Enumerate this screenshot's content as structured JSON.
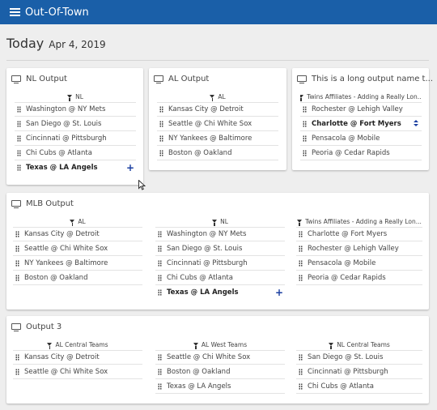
{
  "app": {
    "title": "Out-Of-Town"
  },
  "header": {
    "today": "Today",
    "date": "Apr 4, 2019"
  },
  "cards": [
    {
      "name": "NL Output",
      "columns": [
        {
          "filter": "NL",
          "rows": [
            "Washington @ NY Mets",
            "San Diego @ St. Louis",
            "Cincinnati @ Pittsburgh",
            "Chi Cubs @ Atlanta",
            "Texas @ LA Angels"
          ]
        }
      ]
    },
    {
      "name": "AL Output",
      "columns": [
        {
          "filter": "AL",
          "rows": [
            "Kansas City @ Detroit",
            "Seattle @ Chi White Sox",
            "NY Yankees @ Baltimore",
            "Boston @ Oakland"
          ]
        }
      ]
    },
    {
      "name": "This is a long output name t...",
      "columns": [
        {
          "filter": "Twins Affiliates - Adding a Really Lon...",
          "rows": [
            "Rochester @ Lehigh Valley",
            "Charlotte @ Fort Myers",
            "Pensacola @ Mobile",
            "Peoria @ Cedar Rapids"
          ]
        }
      ]
    },
    {
      "name": "MLB Output",
      "columns": [
        {
          "filter": "AL",
          "rows": [
            "Kansas City @ Detroit",
            "Seattle @ Chi White Sox",
            "NY Yankees @ Baltimore",
            "Boston @ Oakland"
          ]
        },
        {
          "filter": "NL",
          "rows": [
            "Washington @ NY Mets",
            "San Diego @ St. Louis",
            "Cincinnati @ Pittsburgh",
            "Chi Cubs @ Atlanta",
            "Texas @ LA Angels"
          ]
        },
        {
          "filter": "Twins Affiliates - Adding a Really Lon...",
          "rows": [
            "Charlotte @ Fort Myers",
            "Rochester @ Lehigh Valley",
            "Pensacola @ Mobile",
            "Peoria @ Cedar Rapids"
          ]
        }
      ]
    },
    {
      "name": "Output 3",
      "columns": [
        {
          "filter": "AL Central Teams",
          "rows": [
            "Kansas City @ Detroit",
            "Seattle @ Chi White Sox"
          ]
        },
        {
          "filter": "AL West Teams",
          "rows": [
            "Seattle @ Chi White Sox",
            "Boston @ Oakland",
            "Texas @ LA Angels"
          ]
        },
        {
          "filter": "NL Central Teams",
          "rows": [
            "San Diego @ St. Louis",
            "Cincinnati @ Pittsburgh",
            "Chi Cubs @ Atlanta"
          ]
        }
      ]
    }
  ],
  "icons": {
    "add": "+",
    "reorder": "up-down-icon"
  },
  "colors": {
    "appbar": "#1a5fa8",
    "accent": "#1a3ea0",
    "background": "#eeeeee"
  }
}
